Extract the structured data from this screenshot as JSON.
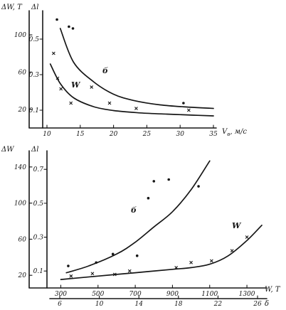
{
  "chart_data": [
    {
      "type": "scatter",
      "left_axis": {
        "label": "ΔW, T",
        "ticks": [
          20,
          60,
          100
        ]
      },
      "right_axis": {
        "label": "Δl",
        "ticks": [
          0.1,
          0.3,
          0.5
        ]
      },
      "x_axis": {
        "label": "V",
        "subscript": "в",
        "unit": ", м/с",
        "ticks": [
          10,
          15,
          20,
          25,
          30,
          35
        ],
        "range": [
          10,
          35
        ]
      },
      "y_range_left": [
        0,
        126
      ],
      "series": [
        {
          "name": "б",
          "marker": "dot",
          "curve": [
            [
              12,
              0.56
            ],
            [
              14,
              0.37
            ],
            [
              17,
              0.26
            ],
            [
              20,
              0.19
            ],
            [
              23,
              0.155
            ],
            [
              27,
              0.13
            ],
            [
              31,
              0.118
            ],
            [
              35,
              0.11
            ]
          ],
          "points": [
            [
              11.5,
              0.61
            ],
            [
              13.3,
              0.57
            ],
            [
              13.9,
              0.56
            ],
            [
              30.5,
              0.14
            ]
          ]
        },
        {
          "name": "W",
          "marker": "x",
          "curve": [
            [
              10.5,
              0.36
            ],
            [
              12,
              0.25
            ],
            [
              14,
              0.17
            ],
            [
              17,
              0.12
            ],
            [
              20,
              0.098
            ],
            [
              24,
              0.085
            ],
            [
              28,
              0.078
            ],
            [
              32,
              0.072
            ],
            [
              35,
              0.068
            ]
          ],
          "points": [
            [
              11,
              0.42
            ],
            [
              11.6,
              0.28
            ],
            [
              12.1,
              0.22
            ],
            [
              13.6,
              0.14
            ],
            [
              16.7,
              0.23
            ],
            [
              19.4,
              0.14
            ],
            [
              23.4,
              0.11
            ],
            [
              31.3,
              0.1
            ]
          ]
        }
      ]
    },
    {
      "type": "scatter",
      "left_axis": {
        "label": "ΔW",
        "ticks": [
          20,
          60,
          100,
          140
        ]
      },
      "right_axis": {
        "label": "Δl",
        "ticks": [
          0.1,
          0.3,
          0.5,
          0.7
        ]
      },
      "x_axis": {
        "label": "W, T",
        "ticks": [
          300,
          500,
          700,
          900,
          1100,
          1300
        ],
        "range": [
          260,
          1380
        ]
      },
      "x_axis_2": {
        "label": "δ",
        "ticks": [
          6,
          10,
          14,
          18,
          22,
          26
        ]
      },
      "y_range_left": [
        6,
        158
      ],
      "series": [
        {
          "name": "б",
          "marker": "dot",
          "curve": [
            [
              330,
              0.09
            ],
            [
              450,
              0.13
            ],
            [
              600,
              0.2
            ],
            [
              700,
              0.27
            ],
            [
              800,
              0.36
            ],
            [
              900,
              0.45
            ],
            [
              1000,
              0.58
            ],
            [
              1100,
              0.75
            ]
          ],
          "points": [
            [
              340,
              0.13
            ],
            [
              490,
              0.15
            ],
            [
              580,
              0.2
            ],
            [
              710,
              0.19
            ],
            [
              770,
              0.53
            ],
            [
              800,
              0.63
            ],
            [
              880,
              0.64
            ],
            [
              1040,
              0.6
            ]
          ]
        },
        {
          "name": "W",
          "marker": "x",
          "curve": [
            [
              300,
              0.05
            ],
            [
              500,
              0.07
            ],
            [
              700,
              0.09
            ],
            [
              900,
              0.11
            ],
            [
              1000,
              0.12
            ],
            [
              1100,
              0.14
            ],
            [
              1200,
              0.19
            ],
            [
              1300,
              0.28
            ],
            [
              1380,
              0.37
            ]
          ],
          "points": [
            [
              355,
              0.07
            ],
            [
              470,
              0.085
            ],
            [
              590,
              0.08
            ],
            [
              670,
              0.1
            ],
            [
              920,
              0.12
            ],
            [
              1000,
              0.15
            ],
            [
              1110,
              0.16
            ],
            [
              1220,
              0.22
            ],
            [
              1300,
              0.3
            ]
          ]
        }
      ]
    }
  ]
}
